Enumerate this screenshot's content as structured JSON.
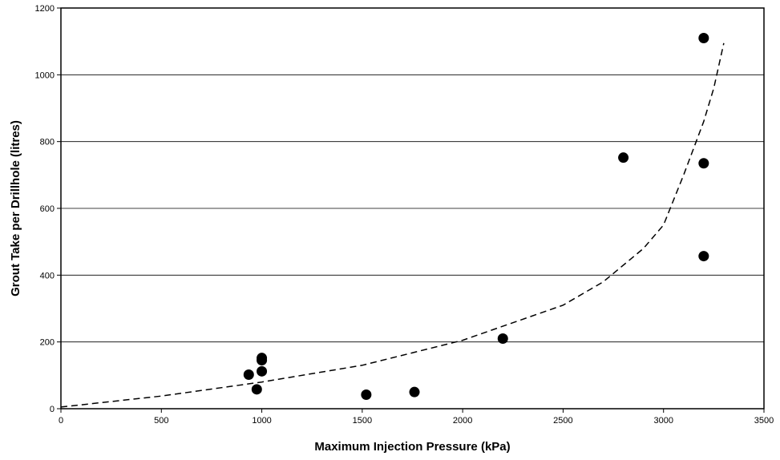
{
  "chart_data": {
    "type": "scatter",
    "title": "",
    "xlabel": "Maximum Injection Pressure (kPa)",
    "ylabel": "Grout Take per Drillhole (litres)",
    "xlim": [
      0,
      3500
    ],
    "ylim": [
      0,
      1200
    ],
    "xticks": [
      0,
      500,
      1000,
      1500,
      2000,
      2500,
      3000,
      3500
    ],
    "yticks": [
      0,
      200,
      400,
      600,
      800,
      1000,
      1200
    ],
    "grid": "horizontal major gridlines",
    "legend": "none",
    "series": [
      {
        "marker": "filled circle",
        "color": "#000000",
        "points": [
          {
            "x": 935,
            "y": 102
          },
          {
            "x": 975,
            "y": 58
          },
          {
            "x": 1000,
            "y": 112
          },
          {
            "x": 1000,
            "y": 145
          },
          {
            "x": 1000,
            "y": 152
          },
          {
            "x": 1520,
            "y": 42
          },
          {
            "x": 1760,
            "y": 50
          },
          {
            "x": 2200,
            "y": 210
          },
          {
            "x": 2800,
            "y": 752
          },
          {
            "x": 3200,
            "y": 1110
          },
          {
            "x": 3200,
            "y": 735
          },
          {
            "x": 3200,
            "y": 457
          }
        ]
      }
    ],
    "trendline": {
      "style": "dashed",
      "color": "#000000",
      "points": [
        {
          "x": 0,
          "y": 5
        },
        {
          "x": 500,
          "y": 38
        },
        {
          "x": 1000,
          "y": 80
        },
        {
          "x": 1500,
          "y": 130
        },
        {
          "x": 2000,
          "y": 205
        },
        {
          "x": 2500,
          "y": 310
        },
        {
          "x": 2700,
          "y": 380
        },
        {
          "x": 2900,
          "y": 480
        },
        {
          "x": 3000,
          "y": 550
        },
        {
          "x": 3100,
          "y": 700
        },
        {
          "x": 3200,
          "y": 860
        },
        {
          "x": 3250,
          "y": 960
        },
        {
          "x": 3300,
          "y": 1095
        }
      ]
    }
  }
}
